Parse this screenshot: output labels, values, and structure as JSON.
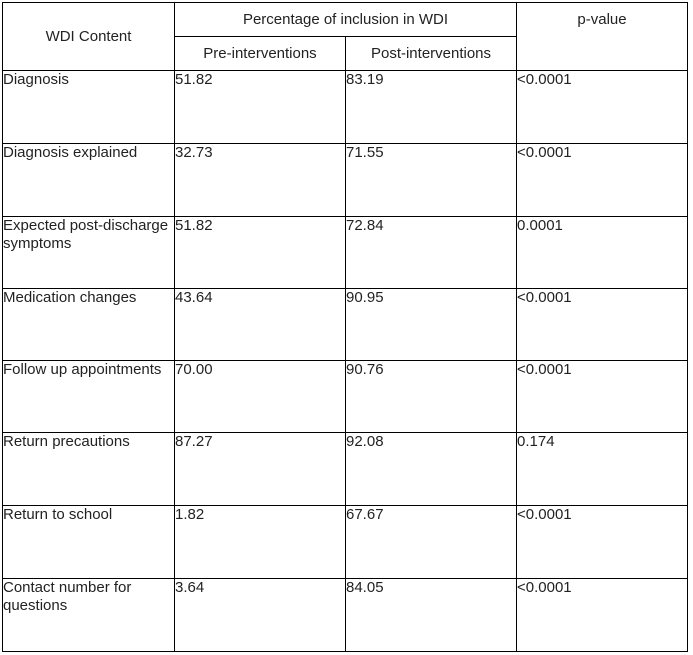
{
  "header": {
    "content_col": "WDI Content",
    "group_col": "Percentage of inclusion in WDI",
    "pre_col": "Pre-interventions",
    "post_col": "Post-interventions",
    "pvalue_col": "p-value"
  },
  "rows": [
    {
      "content": "Diagnosis",
      "pre": "51.82",
      "post": "83.19",
      "p": "<0.0001",
      "significant": true
    },
    {
      "content": "Diagnosis explained",
      "pre": "32.73",
      "post": "71.55",
      "p": "<0.0001",
      "significant": true
    },
    {
      "content": "Expected post-discharge symptoms",
      "pre": "51.82",
      "post": "72.84",
      "p": "0.0001",
      "significant": true
    },
    {
      "content": "Medication changes",
      "pre": "43.64",
      "post": "90.95",
      "p": "<0.0001",
      "significant": true
    },
    {
      "content": "Follow up appointments",
      "pre": "70.00",
      "post": "90.76",
      "p": "<0.0001",
      "significant": true
    },
    {
      "content": "Return precautions",
      "pre": "87.27",
      "post": "92.08",
      "p": "0.174",
      "significant": false
    },
    {
      "content": "Return to school",
      "pre": "1.82",
      "post": "67.67",
      "p": "<0.0001",
      "significant": true
    },
    {
      "content": "Contact number for questions",
      "pre": "3.64",
      "post": "84.05",
      "p": "<0.0001",
      "significant": true
    }
  ]
}
